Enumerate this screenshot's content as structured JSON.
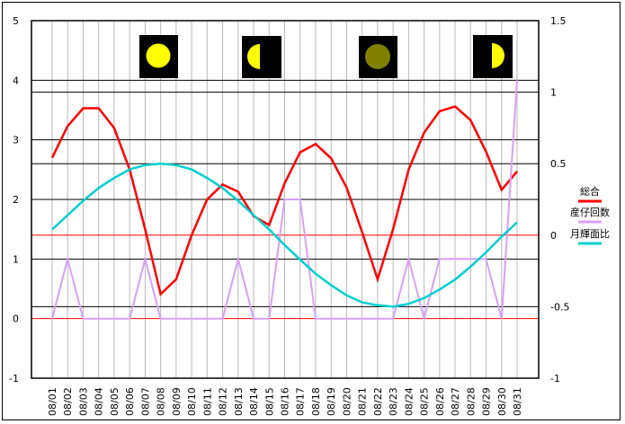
{
  "chart_data": {
    "type": "line",
    "categories": [
      "08/01",
      "08/02",
      "08/03",
      "08/04",
      "08/05",
      "08/06",
      "08/07",
      "08/08",
      "08/09",
      "08/10",
      "08/11",
      "08/12",
      "08/13",
      "08/14",
      "08/15",
      "08/16",
      "08/17",
      "08/18",
      "08/19",
      "08/20",
      "08/21",
      "08/22",
      "08/23",
      "08/24",
      "08/25",
      "08/26",
      "08/27",
      "08/28",
      "08/29",
      "08/30",
      "08/31"
    ],
    "left_axis": {
      "ylim": [
        -1,
        5
      ],
      "ticks": [
        "5",
        "4",
        "3",
        "2",
        "1",
        "0",
        "-1"
      ]
    },
    "right_axis": {
      "ylim": [
        -1,
        1.5
      ],
      "ticks": [
        "1.5",
        "1",
        "0.5",
        "0",
        "-0.5",
        "-1"
      ]
    },
    "grid": true,
    "legend_placement": "right",
    "series": [
      {
        "name": "総合",
        "axis": "left",
        "color": "#ff0000",
        "values": [
          2.7,
          3.23,
          3.53,
          3.53,
          3.2,
          2.5,
          1.5,
          0.41,
          0.66,
          1.4,
          2.0,
          2.25,
          2.13,
          1.72,
          1.57,
          2.27,
          2.79,
          2.93,
          2.69,
          2.2,
          1.45,
          0.66,
          1.5,
          2.5,
          3.12,
          3.48,
          3.56,
          3.33,
          2.8,
          2.16,
          2.47
        ]
      },
      {
        "name": "産仔回数",
        "axis": "left",
        "color": "#d8a0f8",
        "values": [
          0,
          1,
          0,
          0,
          0,
          0,
          1,
          0,
          0,
          0,
          0,
          0,
          1,
          0,
          0,
          2,
          2,
          0,
          0,
          0,
          0,
          0,
          0,
          1,
          0,
          1,
          1,
          1,
          1,
          0,
          4
        ]
      },
      {
        "name": "月輝面比",
        "axis": "right",
        "color": "#00d0d0",
        "values": [
          0.04,
          0.14,
          0.24,
          0.33,
          0.4,
          0.46,
          0.49,
          0.5,
          0.49,
          0.46,
          0.4,
          0.33,
          0.24,
          0.14,
          0.04,
          -0.07,
          -0.17,
          -0.27,
          -0.35,
          -0.42,
          -0.47,
          -0.49,
          -0.5,
          -0.48,
          -0.44,
          -0.38,
          -0.31,
          -0.22,
          -0.12,
          -0.01,
          0.09
        ]
      }
    ],
    "moon_icons": [
      "full-moon-icon",
      "first-quarter-moon-icon",
      "new-moon-icon",
      "last-quarter-moon-icon"
    ]
  }
}
